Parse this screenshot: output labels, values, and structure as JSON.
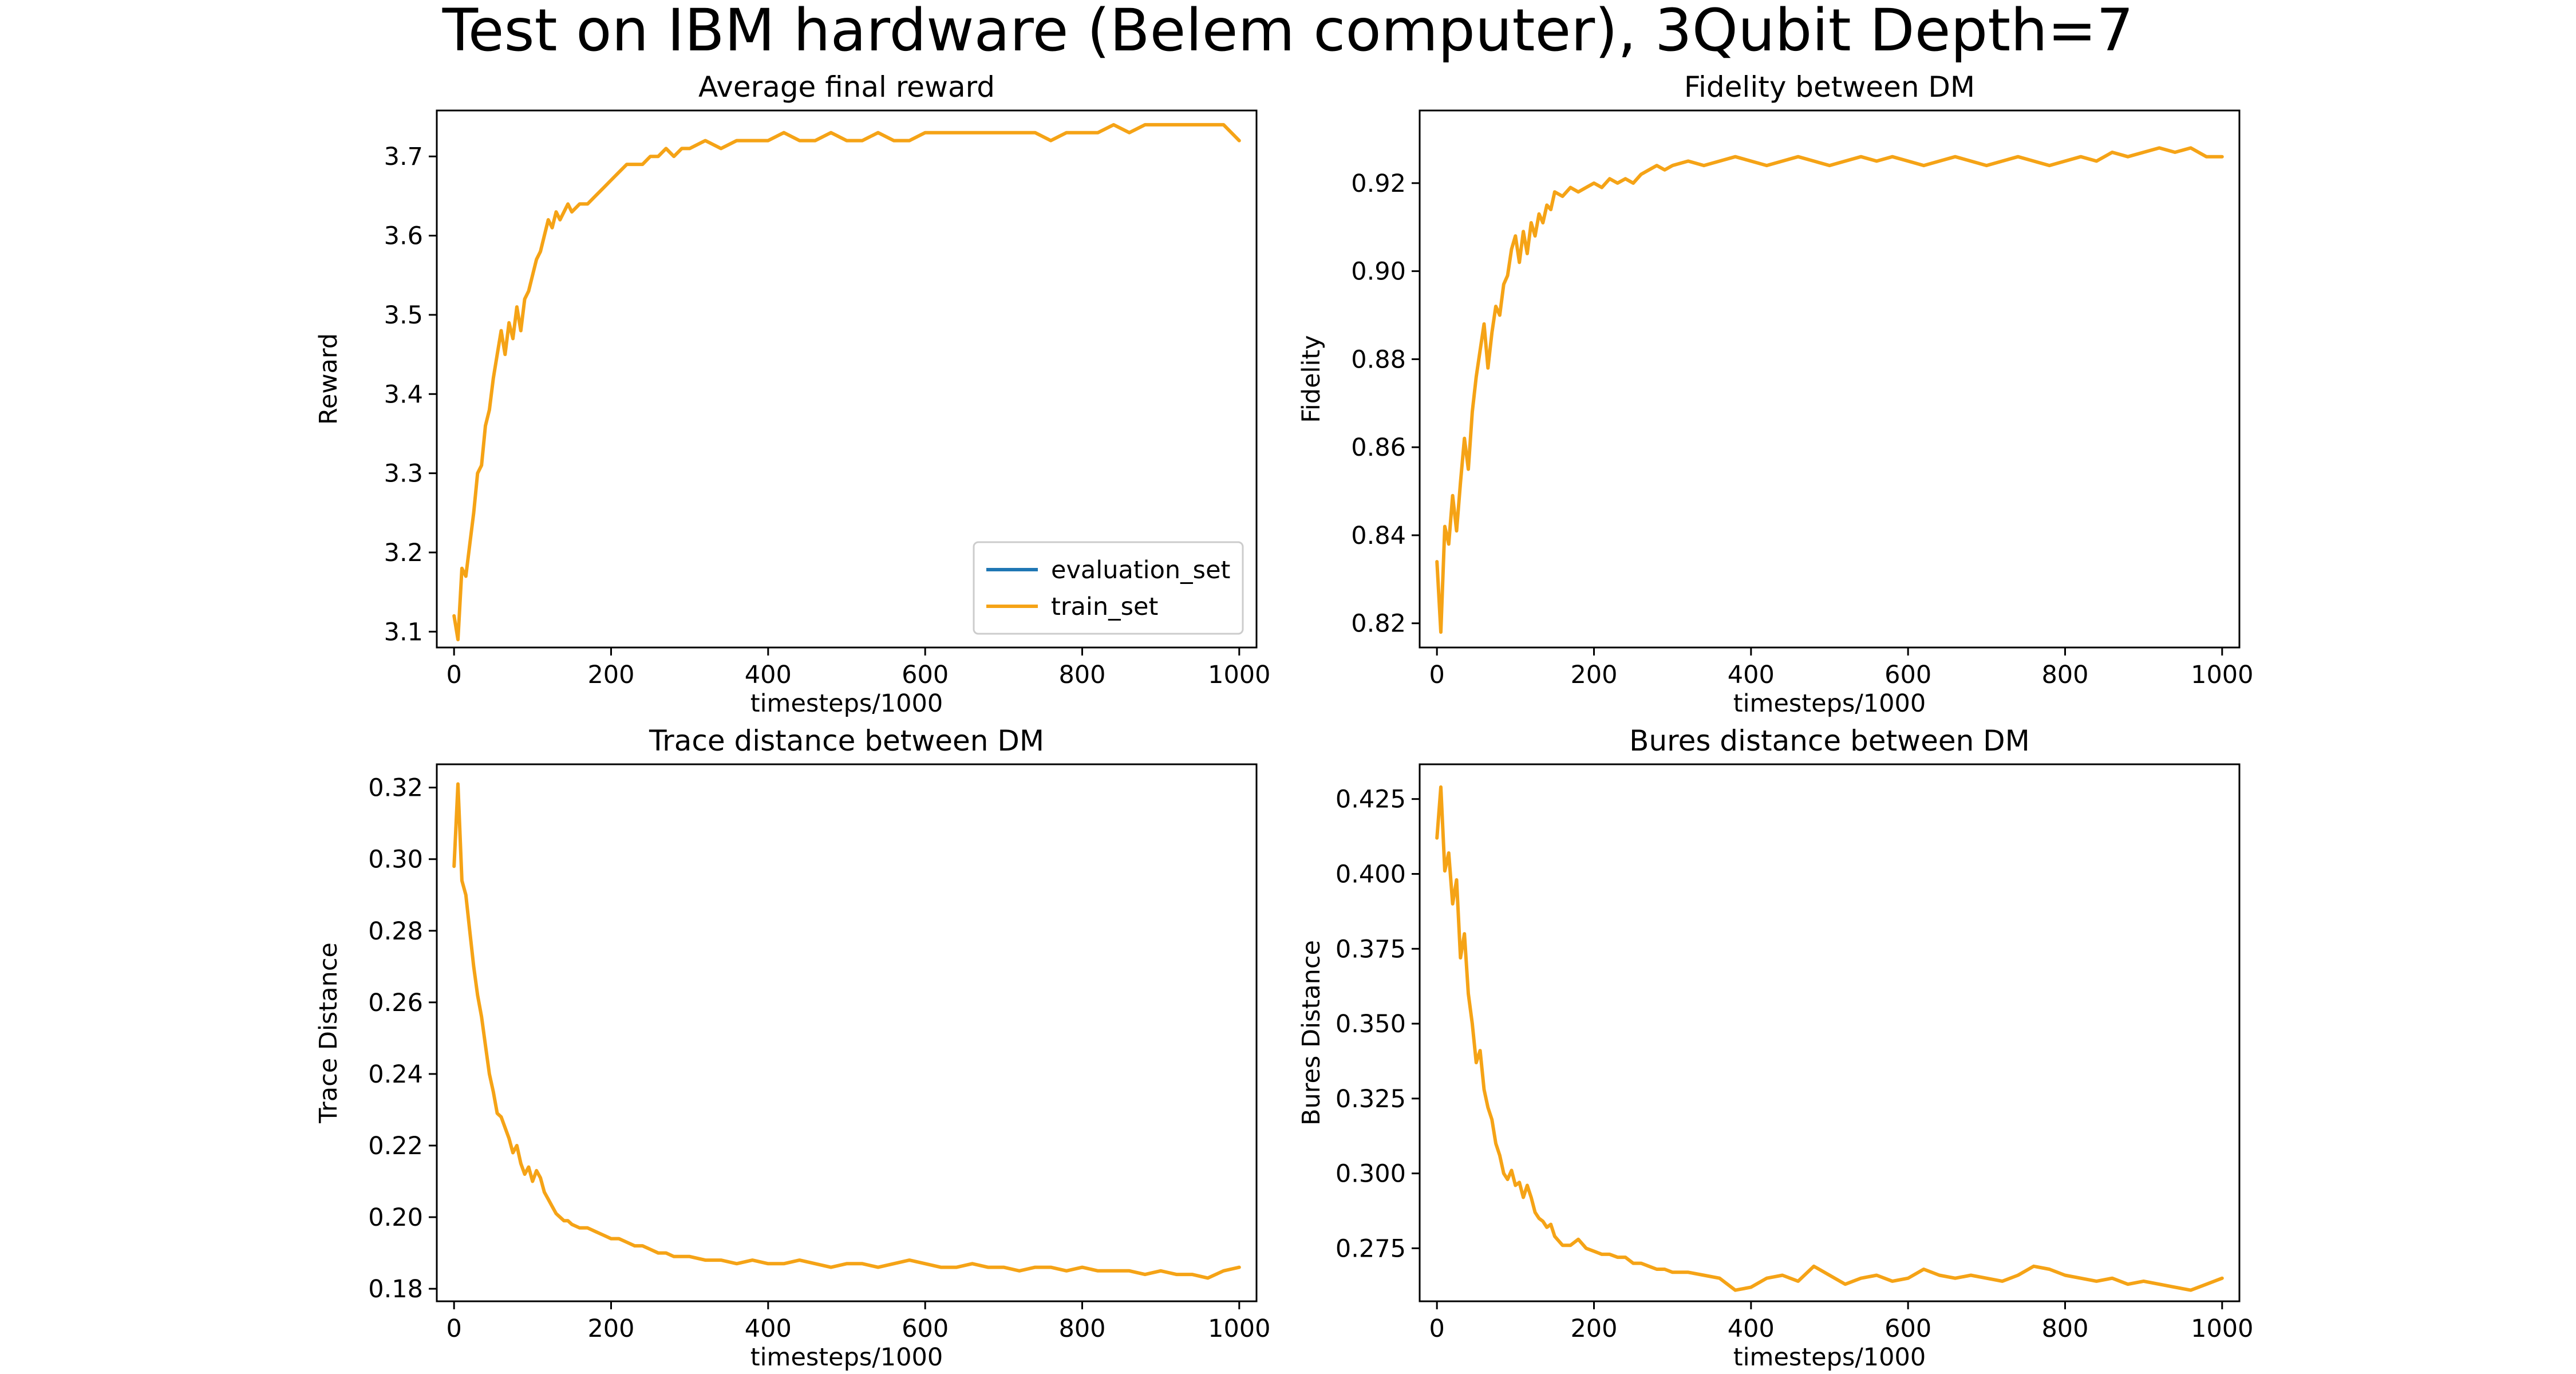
{
  "figure": {
    "suptitle": "Test on IBM hardware (Belem computer), 3Qubit Depth=7",
    "colors": {
      "train_set": "#f5a316",
      "evaluation_set": "#1f77b4"
    }
  },
  "chart_data": [
    {
      "type": "line",
      "title": "Average final reward",
      "xlabel": "timesteps/1000",
      "ylabel": "Reward",
      "xlim": [
        -22,
        1022
      ],
      "ylim": [
        3.08,
        3.758
      ],
      "xticks": [
        0,
        200,
        400,
        600,
        800,
        1000
      ],
      "yticks": [
        3.1,
        3.2,
        3.3,
        3.4,
        3.5,
        3.6,
        3.7
      ],
      "ytick_decimals": 1,
      "legend": {
        "position": "lower-right",
        "entries": [
          "evaluation_set",
          "train_set"
        ]
      },
      "series": [
        {
          "name": "evaluation_set",
          "x": [],
          "values": []
        },
        {
          "name": "train_set",
          "x": [
            0,
            5,
            10,
            15,
            20,
            25,
            30,
            35,
            40,
            45,
            50,
            55,
            60,
            65,
            70,
            75,
            80,
            85,
            90,
            95,
            100,
            105,
            110,
            115,
            120,
            125,
            130,
            135,
            140,
            145,
            150,
            160,
            170,
            180,
            190,
            200,
            210,
            220,
            230,
            240,
            250,
            260,
            270,
            280,
            290,
            300,
            320,
            340,
            360,
            380,
            400,
            420,
            440,
            460,
            480,
            500,
            520,
            540,
            560,
            580,
            600,
            620,
            640,
            660,
            680,
            700,
            720,
            740,
            760,
            780,
            800,
            820,
            840,
            860,
            880,
            900,
            920,
            940,
            960,
            980,
            1000
          ],
          "values": [
            3.12,
            3.09,
            3.18,
            3.17,
            3.21,
            3.25,
            3.3,
            3.31,
            3.36,
            3.38,
            3.42,
            3.45,
            3.48,
            3.45,
            3.49,
            3.47,
            3.51,
            3.48,
            3.52,
            3.53,
            3.55,
            3.57,
            3.58,
            3.6,
            3.62,
            3.61,
            3.63,
            3.62,
            3.63,
            3.64,
            3.63,
            3.64,
            3.64,
            3.65,
            3.66,
            3.67,
            3.68,
            3.69,
            3.69,
            3.69,
            3.7,
            3.7,
            3.71,
            3.7,
            3.71,
            3.71,
            3.72,
            3.71,
            3.72,
            3.72,
            3.72,
            3.73,
            3.72,
            3.72,
            3.73,
            3.72,
            3.72,
            3.73,
            3.72,
            3.72,
            3.73,
            3.73,
            3.73,
            3.73,
            3.73,
            3.73,
            3.73,
            3.73,
            3.72,
            3.73,
            3.73,
            3.73,
            3.74,
            3.73,
            3.74,
            3.74,
            3.74,
            3.74,
            3.74,
            3.74,
            3.72
          ]
        }
      ]
    },
    {
      "type": "line",
      "title": "Fidelity between DM",
      "xlabel": "timesteps/1000",
      "ylabel": "Fidelity",
      "xlim": [
        -22,
        1022
      ],
      "ylim": [
        0.8145,
        0.9365
      ],
      "xticks": [
        0,
        200,
        400,
        600,
        800,
        1000
      ],
      "yticks": [
        0.82,
        0.84,
        0.86,
        0.88,
        0.9,
        0.92
      ],
      "ytick_decimals": 2,
      "series": [
        {
          "name": "train_set",
          "x": [
            0,
            5,
            10,
            15,
            20,
            25,
            30,
            35,
            40,
            45,
            50,
            55,
            60,
            65,
            70,
            75,
            80,
            85,
            90,
            95,
            100,
            105,
            110,
            115,
            120,
            125,
            130,
            135,
            140,
            145,
            150,
            160,
            170,
            180,
            190,
            200,
            210,
            220,
            230,
            240,
            250,
            260,
            270,
            280,
            290,
            300,
            320,
            340,
            360,
            380,
            400,
            420,
            440,
            460,
            480,
            500,
            520,
            540,
            560,
            580,
            600,
            620,
            640,
            660,
            680,
            700,
            720,
            740,
            760,
            780,
            800,
            820,
            840,
            860,
            880,
            900,
            920,
            940,
            960,
            980,
            1000
          ],
          "values": [
            0.834,
            0.818,
            0.842,
            0.838,
            0.849,
            0.841,
            0.852,
            0.862,
            0.855,
            0.868,
            0.876,
            0.882,
            0.888,
            0.878,
            0.886,
            0.892,
            0.89,
            0.897,
            0.899,
            0.905,
            0.908,
            0.902,
            0.909,
            0.904,
            0.911,
            0.908,
            0.913,
            0.911,
            0.915,
            0.914,
            0.918,
            0.917,
            0.919,
            0.918,
            0.919,
            0.92,
            0.919,
            0.921,
            0.92,
            0.921,
            0.92,
            0.922,
            0.923,
            0.924,
            0.923,
            0.924,
            0.925,
            0.924,
            0.925,
            0.926,
            0.925,
            0.924,
            0.925,
            0.926,
            0.925,
            0.924,
            0.925,
            0.926,
            0.925,
            0.926,
            0.925,
            0.924,
            0.925,
            0.926,
            0.925,
            0.924,
            0.925,
            0.926,
            0.925,
            0.924,
            0.925,
            0.926,
            0.925,
            0.927,
            0.926,
            0.927,
            0.928,
            0.927,
            0.928,
            0.926,
            0.926
          ]
        }
      ]
    },
    {
      "type": "line",
      "title": "Trace distance between DM",
      "xlabel": "timesteps/1000",
      "ylabel": "Trace Distance",
      "xlim": [
        -22,
        1022
      ],
      "ylim": [
        0.1765,
        0.3265
      ],
      "xticks": [
        0,
        200,
        400,
        600,
        800,
        1000
      ],
      "yticks": [
        0.18,
        0.2,
        0.22,
        0.24,
        0.26,
        0.28,
        0.3,
        0.32
      ],
      "ytick_decimals": 2,
      "series": [
        {
          "name": "train_set",
          "x": [
            0,
            5,
            10,
            15,
            20,
            25,
            30,
            35,
            40,
            45,
            50,
            55,
            60,
            65,
            70,
            75,
            80,
            85,
            90,
            95,
            100,
            105,
            110,
            115,
            120,
            125,
            130,
            135,
            140,
            145,
            150,
            160,
            170,
            180,
            190,
            200,
            210,
            220,
            230,
            240,
            250,
            260,
            270,
            280,
            290,
            300,
            320,
            340,
            360,
            380,
            400,
            420,
            440,
            460,
            480,
            500,
            520,
            540,
            560,
            580,
            600,
            620,
            640,
            660,
            680,
            700,
            720,
            740,
            760,
            780,
            800,
            820,
            840,
            860,
            880,
            900,
            920,
            940,
            960,
            980,
            1000
          ],
          "values": [
            0.298,
            0.321,
            0.294,
            0.29,
            0.28,
            0.27,
            0.262,
            0.256,
            0.248,
            0.24,
            0.235,
            0.229,
            0.228,
            0.225,
            0.222,
            0.218,
            0.22,
            0.215,
            0.212,
            0.214,
            0.21,
            0.213,
            0.211,
            0.207,
            0.205,
            0.203,
            0.201,
            0.2,
            0.199,
            0.199,
            0.198,
            0.197,
            0.197,
            0.196,
            0.195,
            0.194,
            0.194,
            0.193,
            0.192,
            0.192,
            0.191,
            0.19,
            0.19,
            0.189,
            0.189,
            0.189,
            0.188,
            0.188,
            0.187,
            0.188,
            0.187,
            0.187,
            0.188,
            0.187,
            0.186,
            0.187,
            0.187,
            0.186,
            0.187,
            0.188,
            0.187,
            0.186,
            0.186,
            0.187,
            0.186,
            0.186,
            0.185,
            0.186,
            0.186,
            0.185,
            0.186,
            0.185,
            0.185,
            0.185,
            0.184,
            0.185,
            0.184,
            0.184,
            0.183,
            0.185,
            0.186
          ]
        }
      ]
    },
    {
      "type": "line",
      "title": "Bures distance between DM",
      "xlabel": "timesteps/1000",
      "ylabel": "Bures Distance",
      "xlim": [
        -22,
        1022
      ],
      "ylim": [
        0.2573,
        0.4366
      ],
      "xticks": [
        0,
        200,
        400,
        600,
        800,
        1000
      ],
      "yticks": [
        0.275,
        0.3,
        0.325,
        0.35,
        0.375,
        0.4,
        0.425
      ],
      "ytick_decimals": 3,
      "series": [
        {
          "name": "train_set",
          "x": [
            0,
            5,
            10,
            15,
            20,
            25,
            30,
            35,
            40,
            45,
            50,
            55,
            60,
            65,
            70,
            75,
            80,
            85,
            90,
            95,
            100,
            105,
            110,
            115,
            120,
            125,
            130,
            135,
            140,
            145,
            150,
            160,
            170,
            180,
            190,
            200,
            210,
            220,
            230,
            240,
            250,
            260,
            270,
            280,
            290,
            300,
            320,
            340,
            360,
            380,
            400,
            420,
            440,
            460,
            480,
            500,
            520,
            540,
            560,
            580,
            600,
            620,
            640,
            660,
            680,
            700,
            720,
            740,
            760,
            780,
            800,
            820,
            840,
            860,
            880,
            900,
            920,
            940,
            960,
            980,
            1000
          ],
          "values": [
            0.412,
            0.429,
            0.401,
            0.407,
            0.39,
            0.398,
            0.372,
            0.38,
            0.36,
            0.35,
            0.337,
            0.341,
            0.328,
            0.322,
            0.318,
            0.31,
            0.306,
            0.3,
            0.298,
            0.301,
            0.296,
            0.297,
            0.292,
            0.296,
            0.292,
            0.287,
            0.285,
            0.284,
            0.282,
            0.283,
            0.279,
            0.276,
            0.276,
            0.278,
            0.275,
            0.274,
            0.273,
            0.273,
            0.272,
            0.272,
            0.27,
            0.27,
            0.269,
            0.268,
            0.268,
            0.267,
            0.267,
            0.266,
            0.265,
            0.261,
            0.262,
            0.265,
            0.266,
            0.264,
            0.269,
            0.266,
            0.263,
            0.265,
            0.266,
            0.264,
            0.265,
            0.268,
            0.266,
            0.265,
            0.266,
            0.265,
            0.264,
            0.266,
            0.269,
            0.268,
            0.266,
            0.265,
            0.264,
            0.265,
            0.263,
            0.264,
            0.263,
            0.262,
            0.261,
            0.263,
            0.265
          ]
        }
      ]
    }
  ]
}
